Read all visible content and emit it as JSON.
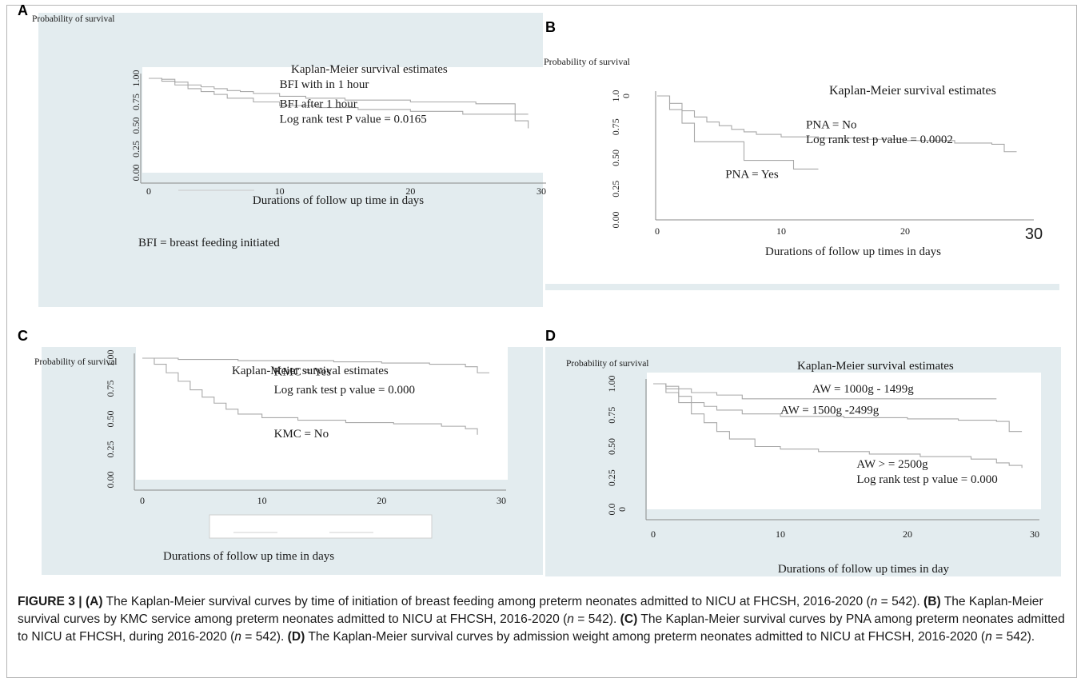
{
  "caption": {
    "lead": "FIGURE 3 | (A) The Kaplan-Meier survival curves by time of initiation of breast feeding among preterm neonates admitted to NICU at FHCSH, 2016-2020 (n = 542). (B) The Kaplan-Meier survival curves by KMC service among preterm neonates admitted to NICU at FHCSH, 2016-2020 (n = 542). (C) The Kaplan-Meier survival curves by PNA among preterm neonates admitted to NICU at FHCSH, during 2016-2020 (n = 542). (D) The Kaplan-Meier survival curves by admission weight among preterm neonates admitted to NICU at FHCSH, 2016-2020 (n = 542)."
  },
  "caption_parts": [
    {
      "bold": "FIGURE 3 | (A)",
      "text": " The Kaplan-Meier survival curves by time of initiation of breast feeding among preterm neonates admitted to NICU at FHCSH, 2016-2020 ("
    },
    {
      "bold": "(B)",
      "text": " The Kaplan-Meier survival curves by KMC service among preterm neonates admitted to NICU at FHCSH, 2016-2020 ("
    },
    {
      "bold": "(C)",
      "text": " The Kaplan-Meier survival curves by PNA among preterm neonates admitted to NICU at FHCSH, during 2016-2020 ("
    },
    {
      "bold": "(D)",
      "text": " The Kaplan-Meier survival curves by admission weight among preterm neonates admitted to NICU at FHCSH, 2016-2020 ("
    }
  ],
  "panels": {
    "A": {
      "letter": "A",
      "ylabel": "Probability of survival",
      "note": "BFI = breast feeding initiated"
    },
    "B": {
      "letter": "B",
      "ylabel": "Probability of survival"
    },
    "C": {
      "letter": "C",
      "ylabel": "Probability of survival"
    },
    "D": {
      "letter": "D",
      "ylabel": "Probability of survival"
    }
  },
  "colors": {
    "panel_bg": "#e3ecef",
    "plot_bg": "#ffffff",
    "curve": "#a8a8a8",
    "axis": "#8a8a8a"
  },
  "chart_data": [
    {
      "id": "A",
      "type": "line",
      "title": "Kaplan-Meier survival estimates",
      "xlabel": "Durations of follow up time in days",
      "ylabel": "Probability of survival",
      "xlim": [
        0,
        30
      ],
      "ylim": [
        0,
        1
      ],
      "xticks": [
        "0",
        "10",
        "20",
        "30"
      ],
      "yticks": [
        "0.00",
        "0.25",
        "0.50",
        "0.75",
        "1.00"
      ],
      "ytick_values": [
        0,
        0.25,
        0.5,
        0.75,
        1.0
      ],
      "annotations": [
        {
          "text": "BFI with in 1 hour",
          "x": 10,
          "y": 0.9
        },
        {
          "text": "BFI after 1 hour",
          "x": 10,
          "y": 0.69
        },
        {
          "text": "Log rank test P value = 0.0165",
          "x": 10,
          "y": 0.53
        }
      ],
      "series": [
        {
          "x": [
            0,
            1,
            2,
            3,
            4,
            5,
            6,
            7,
            8,
            10,
            12,
            15,
            20,
            25,
            28,
            29
          ],
          "y": [
            1.0,
            0.99,
            0.96,
            0.93,
            0.91,
            0.89,
            0.87,
            0.86,
            0.84,
            0.81,
            0.79,
            0.77,
            0.75,
            0.73,
            0.62,
            0.62
          ]
        },
        {
          "x": [
            0,
            1,
            2,
            3,
            4,
            5,
            6,
            8,
            10,
            13,
            16,
            20,
            24,
            28,
            29
          ],
          "y": [
            1.0,
            0.97,
            0.93,
            0.89,
            0.86,
            0.83,
            0.79,
            0.75,
            0.71,
            0.69,
            0.67,
            0.65,
            0.62,
            0.55,
            0.47
          ]
        }
      ]
    },
    {
      "id": "B",
      "type": "line",
      "title": "Kaplan-Meier survival estimates",
      "xlabel": "Durations of follow up times in days",
      "ylabel": "Probability of survival",
      "xlim": [
        0,
        30
      ],
      "ylim": [
        0,
        1
      ],
      "xticks": [
        "0",
        "10",
        "20",
        "30"
      ],
      "yticks": [
        "0.00",
        "0.25",
        "0.50",
        "0.75",
        "1.0\n0"
      ],
      "ytick_values": [
        0,
        0.25,
        0.5,
        0.75,
        1.0
      ],
      "annotations": [
        {
          "text": "PNA = No",
          "x": 12,
          "y": 0.74
        },
        {
          "text": "Log rank test p value = 0.0002",
          "x": 12,
          "y": 0.62
        },
        {
          "text": "PNA = Yes",
          "x": 5.5,
          "y": 0.34
        }
      ],
      "series": [
        {
          "x": [
            0,
            1,
            2,
            3,
            4,
            5,
            6,
            7,
            8,
            10,
            13,
            17,
            20,
            24,
            27,
            28,
            29
          ],
          "y": [
            1.0,
            0.94,
            0.88,
            0.83,
            0.79,
            0.76,
            0.73,
            0.71,
            0.69,
            0.67,
            0.66,
            0.65,
            0.64,
            0.62,
            0.61,
            0.55,
            0.55
          ]
        },
        {
          "x": [
            0,
            1,
            2,
            3,
            7,
            11,
            13
          ],
          "y": [
            1.0,
            0.89,
            0.78,
            0.63,
            0.48,
            0.41,
            0.41
          ]
        }
      ]
    },
    {
      "id": "C",
      "type": "line",
      "title": "Kaplan-Meier survival estimates",
      "xlabel": "Durations of follow up time in days",
      "ylabel": "Probability of survival",
      "xlim": [
        0,
        30
      ],
      "ylim": [
        0,
        1
      ],
      "xticks": [
        "0",
        "10",
        "20",
        "30"
      ],
      "yticks": [
        "0.00",
        "0.25",
        "0.50",
        "0.75",
        "1.00"
      ],
      "ytick_values": [
        0,
        0.25,
        0.5,
        0.75,
        1.0
      ],
      "annotations": [
        {
          "text": "KMC = Yes",
          "x": 11,
          "y": 0.86
        },
        {
          "text": "Log rank test p value = 0.000",
          "x": 11,
          "y": 0.71
        },
        {
          "text": "KMC = No",
          "x": 11,
          "y": 0.35
        }
      ],
      "series": [
        {
          "x": [
            0,
            1,
            3,
            5,
            8,
            12,
            16,
            20,
            24,
            27,
            28,
            29
          ],
          "y": [
            1.0,
            1.0,
            0.99,
            0.99,
            0.98,
            0.98,
            0.97,
            0.96,
            0.95,
            0.93,
            0.88,
            0.88
          ]
        },
        {
          "x": [
            0,
            1,
            2,
            3,
            4,
            5,
            6,
            7,
            8,
            10,
            13,
            17,
            21,
            25,
            27,
            28
          ],
          "y": [
            1.0,
            0.95,
            0.88,
            0.81,
            0.74,
            0.68,
            0.63,
            0.58,
            0.54,
            0.51,
            0.49,
            0.47,
            0.46,
            0.44,
            0.42,
            0.37
          ]
        }
      ]
    },
    {
      "id": "D",
      "type": "line",
      "title": "Kaplan-Meier survival estimates",
      "xlabel": "Durations of follow up times in day",
      "ylabel": "Probability of survival",
      "xlim": [
        0,
        30
      ],
      "ylim": [
        0,
        1
      ],
      "xticks": [
        "0",
        "10",
        "20",
        "30"
      ],
      "yticks": [
        "0.0\n0",
        "0.25",
        "0.50",
        "0.75",
        "1.00"
      ],
      "ytick_values": [
        0,
        0.25,
        0.5,
        0.75,
        1.0
      ],
      "annotations": [
        {
          "text": "AW = 1000g - 1499g",
          "x": 12.5,
          "y": 0.93
        },
        {
          "text": "AW = 1500g -2499g",
          "x": 10,
          "y": 0.76
        },
        {
          "text": "AW > = 2500g",
          "x": 16,
          "y": 0.33
        },
        {
          "text": "Log rank test p value = 0.000",
          "x": 16,
          "y": 0.21
        }
      ],
      "series": [
        {
          "x": [
            0,
            1,
            2,
            3,
            5,
            7,
            10,
            15,
            20,
            27
          ],
          "y": [
            1.0,
            0.98,
            0.96,
            0.93,
            0.91,
            0.88,
            0.88,
            0.88,
            0.88,
            0.88
          ]
        },
        {
          "x": [
            0,
            1,
            2,
            3,
            4,
            5,
            7,
            10,
            15,
            20,
            24,
            27,
            28,
            29
          ],
          "y": [
            1.0,
            0.96,
            0.9,
            0.85,
            0.82,
            0.79,
            0.76,
            0.74,
            0.73,
            0.72,
            0.71,
            0.7,
            0.62,
            0.62
          ]
        },
        {
          "x": [
            0,
            1,
            2,
            3,
            4,
            5,
            6,
            8,
            10,
            13,
            17,
            21,
            25,
            27,
            28,
            29
          ],
          "y": [
            1.0,
            0.93,
            0.85,
            0.76,
            0.69,
            0.62,
            0.56,
            0.5,
            0.48,
            0.46,
            0.44,
            0.42,
            0.4,
            0.37,
            0.35,
            0.33
          ]
        }
      ]
    }
  ]
}
